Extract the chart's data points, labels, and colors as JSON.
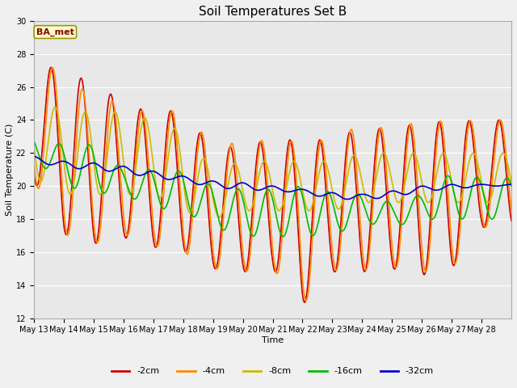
{
  "title": "Soil Temperatures Set B",
  "xlabel": "Time",
  "ylabel": "Soil Temperature (C)",
  "annotation": "BA_met",
  "ylim": [
    12,
    30
  ],
  "yticks": [
    12,
    14,
    16,
    18,
    20,
    22,
    24,
    26,
    28,
    30
  ],
  "background_color": "#f0f0f0",
  "plot_bg_color": "#e8e8e8",
  "series_order": [
    "-2cm",
    "-4cm",
    "-8cm",
    "-16cm",
    "-32cm"
  ],
  "series": {
    "-2cm": {
      "color": "#cc0000",
      "lw": 1.2
    },
    "-4cm": {
      "color": "#ff8800",
      "lw": 1.2
    },
    "-8cm": {
      "color": "#ccbb00",
      "lw": 1.2
    },
    "-16cm": {
      "color": "#00bb00",
      "lw": 1.2
    },
    "-32cm": {
      "color": "#0000cc",
      "lw": 1.2
    }
  },
  "xtick_labels": [
    "May 13",
    "May 14",
    "May 15",
    "May 16",
    "May 17",
    "May 18",
    "May 19",
    "May 20",
    "May 21",
    "May 22",
    "May 23",
    "May 24",
    "May 25",
    "May 26",
    "May 27",
    "May 28"
  ],
  "depths": {
    "-2cm": {
      "peaks": [
        28.0,
        26.6,
        26.5,
        24.9,
        24.5,
        24.6,
        22.2,
        22.5,
        22.8,
        22.8,
        22.8,
        23.6,
        23.4,
        23.9,
        23.9,
        24.0
      ],
      "troughs": [
        20.3,
        17.1,
        16.5,
        16.9,
        16.3,
        16.1,
        15.0,
        14.8,
        15.0,
        12.8,
        14.8,
        14.8,
        15.0,
        14.6,
        15.0,
        17.5
      ],
      "peak_phase": 0.58,
      "trough_phase": 0.17
    },
    "-4cm": {
      "peaks": [
        28.0,
        26.7,
        25.4,
        25.0,
        24.3,
        24.7,
        22.4,
        22.7,
        22.8,
        22.7,
        22.8,
        23.8,
        23.4,
        24.0,
        23.9,
        24.0
      ],
      "troughs": [
        20.3,
        17.1,
        16.5,
        17.1,
        16.4,
        16.0,
        15.0,
        14.8,
        15.0,
        12.8,
        14.9,
        14.9,
        15.1,
        14.8,
        15.0,
        17.5
      ],
      "peak_phase": 0.63,
      "trough_phase": 0.22
    },
    "-8cm": {
      "peaks": [
        25.5,
        24.5,
        24.5,
        24.5,
        24.0,
        23.3,
        21.0,
        21.5,
        21.5,
        21.5,
        21.5,
        22.0,
        22.0,
        22.0,
        22.0,
        22.0
      ],
      "troughs": [
        20.5,
        19.5,
        19.5,
        19.5,
        19.5,
        18.5,
        18.0,
        18.5,
        18.5,
        18.5,
        18.5,
        19.0,
        19.0,
        19.0,
        19.0,
        19.0
      ],
      "peak_phase": 0.72,
      "trough_phase": 0.3
    },
    "-16cm": {
      "peaks": [
        23.0,
        22.5,
        22.5,
        21.0,
        21.0,
        20.9,
        20.0,
        19.8,
        19.8,
        20.0,
        19.6,
        19.5,
        19.0,
        19.5,
        20.8,
        20.5
      ],
      "troughs": [
        21.7,
        20.0,
        19.6,
        19.5,
        18.7,
        18.5,
        17.5,
        17.0,
        16.9,
        17.0,
        17.0,
        17.8,
        17.5,
        18.0,
        18.0,
        18.0
      ],
      "peak_phase": 0.85,
      "trough_phase": 0.45
    },
    "-32cm": {
      "peaks": [
        21.8,
        21.5,
        21.4,
        21.2,
        20.9,
        20.6,
        20.3,
        20.2,
        20.0,
        19.8,
        19.6,
        19.5,
        19.7,
        20.0,
        20.1,
        20.1
      ],
      "troughs": [
        21.5,
        21.1,
        21.0,
        20.8,
        20.5,
        20.3,
        19.9,
        19.8,
        19.7,
        19.6,
        19.2,
        19.2,
        19.3,
        19.7,
        19.8,
        20.0
      ],
      "peak_phase": 0.0,
      "trough_phase": 0.6
    }
  }
}
